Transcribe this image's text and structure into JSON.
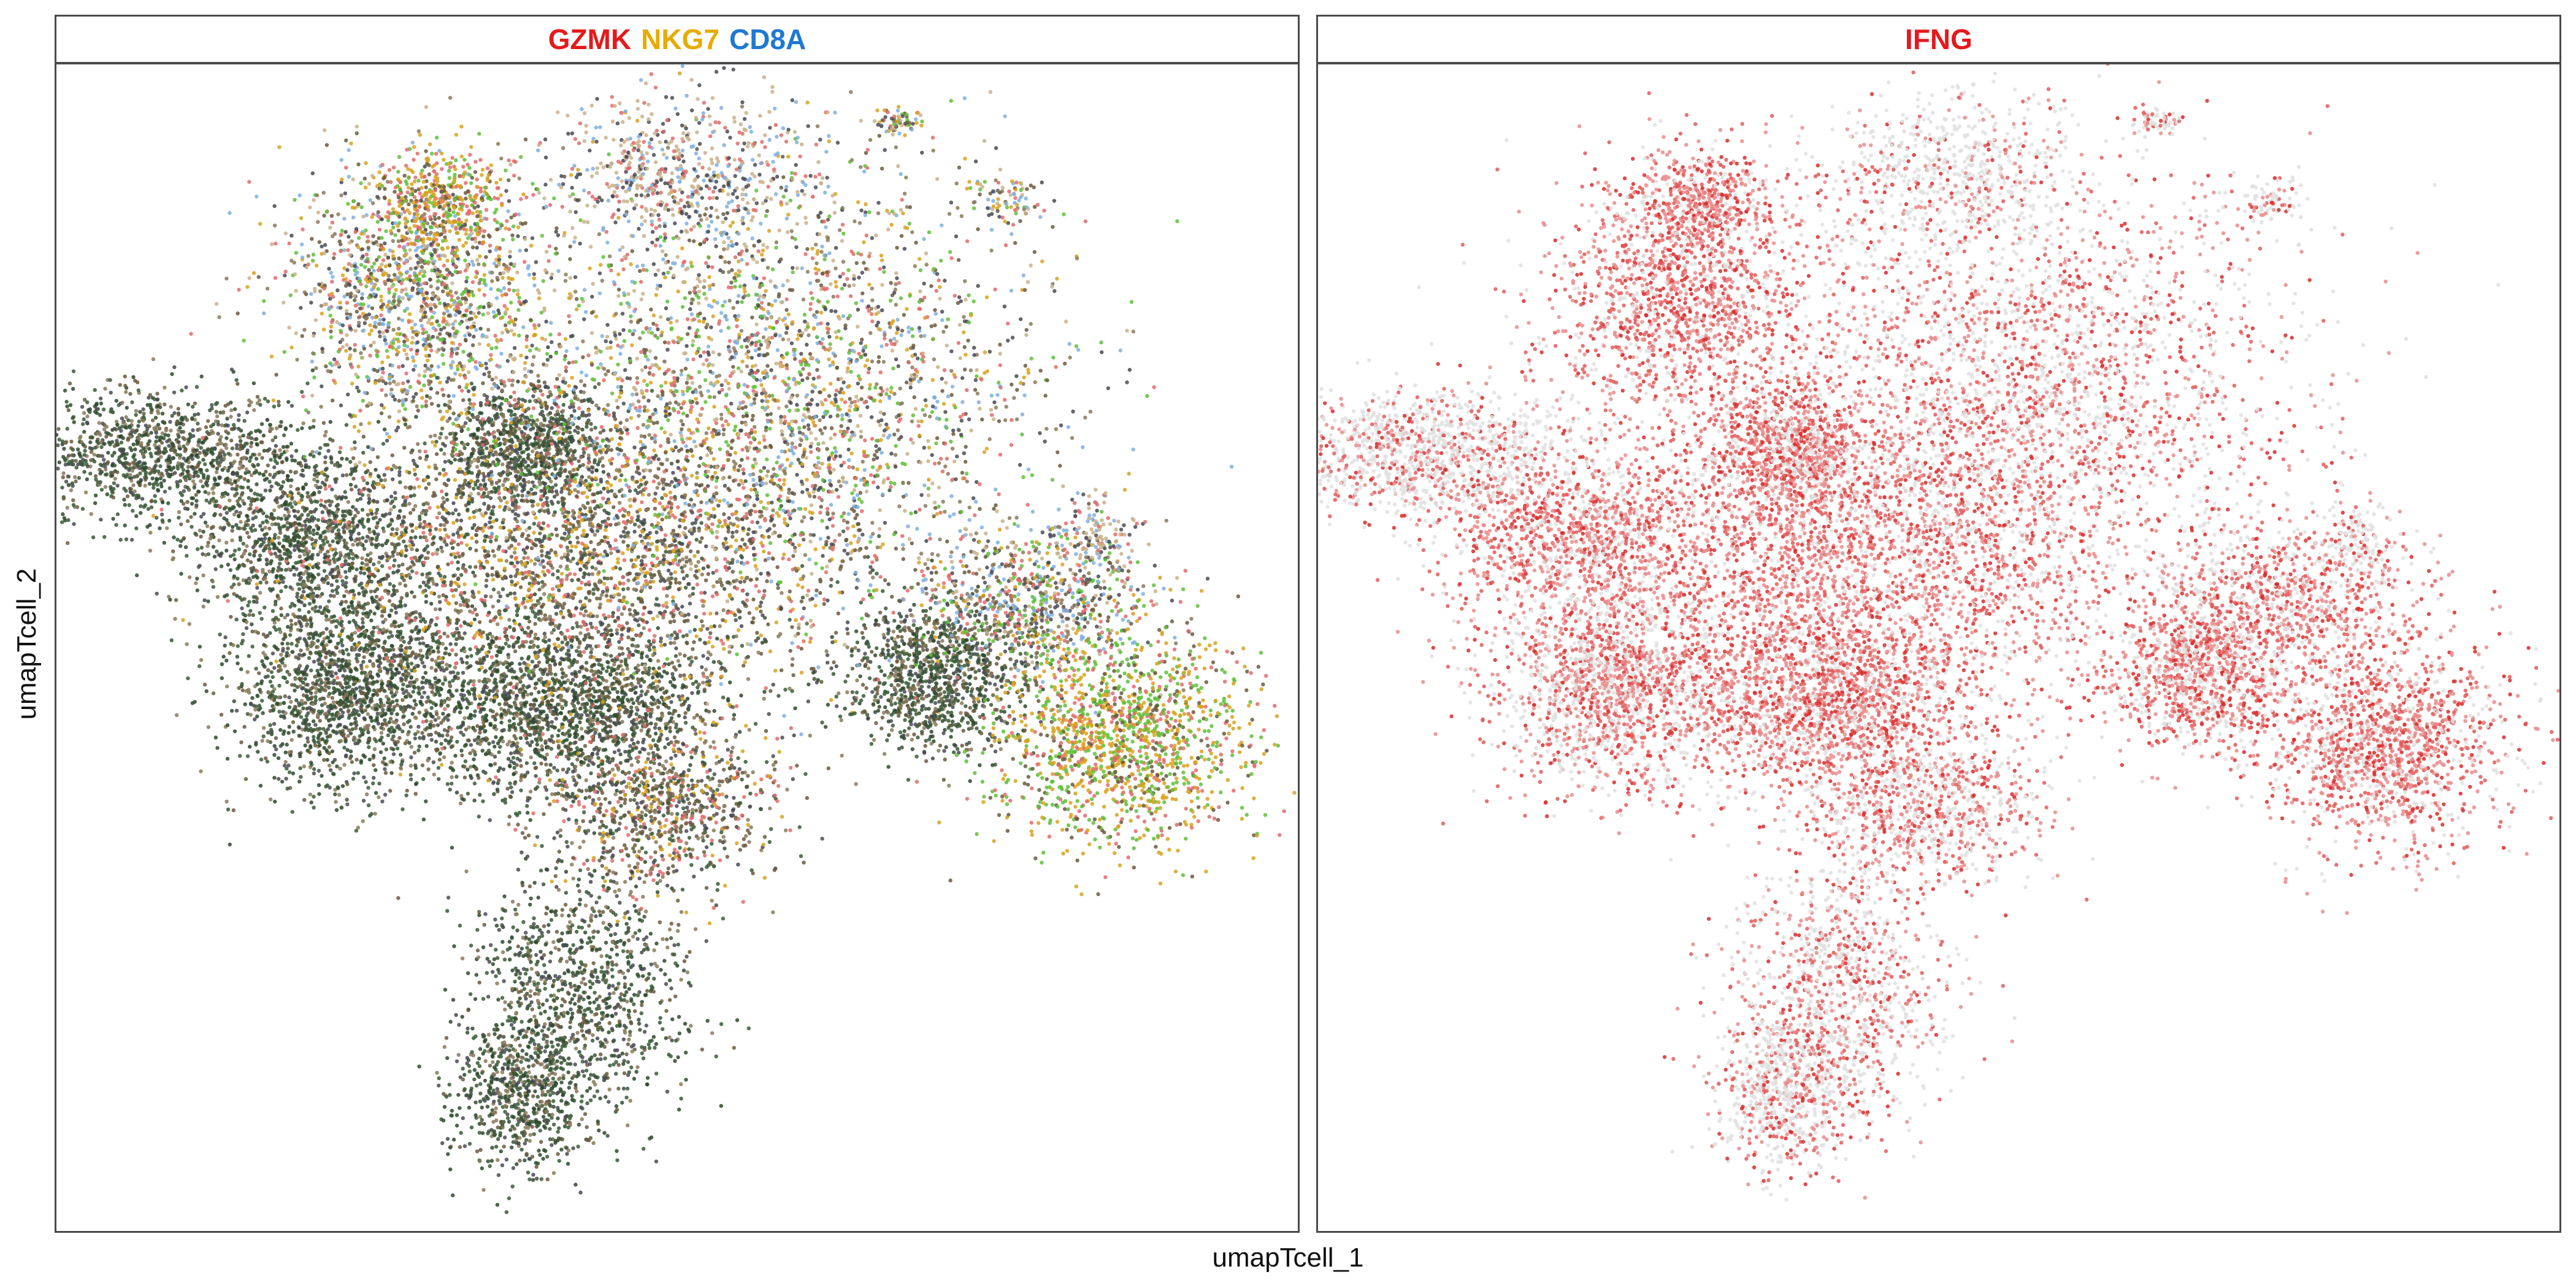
{
  "chart_data": [
    {
      "type": "scatter",
      "panel_title_parts": [
        {
          "text": "GZMK",
          "color": "#E41A1C"
        },
        {
          "text": "NKG7",
          "color": "#E6AB02"
        },
        {
          "text": "CD8A",
          "color": "#1F78D1"
        }
      ],
      "xlabel": "umapTcell_1",
      "ylabel": "umapTcell_2",
      "legend": "none",
      "grid": false,
      "point_colors": [
        "#2f4a2e",
        "#3a5a37",
        "#4a4a55",
        "#6b5a3e",
        "#e36b6b",
        "#d9a21e",
        "#5fbf3a",
        "#7fb0e0",
        "#8a7a5a",
        "#c9b28a"
      ],
      "clusters": [
        {
          "x": -8.4,
          "y": 6.5,
          "sx": 1.2,
          "sy": 0.5,
          "w": 6,
          "mix": "dark"
        },
        {
          "x": -6.2,
          "y": 5.2,
          "sx": 1.0,
          "sy": 0.6,
          "w": 5,
          "mix": "dark"
        },
        {
          "x": -5.6,
          "y": 2.9,
          "sx": 0.9,
          "sy": 0.8,
          "w": 8,
          "mix": "dark"
        },
        {
          "x": -2.4,
          "y": 2.6,
          "sx": 1.1,
          "sy": 0.7,
          "w": 8,
          "mix": "dark"
        },
        {
          "x": -3.0,
          "y": 6.6,
          "sx": 0.6,
          "sy": 0.5,
          "w": 4,
          "mix": "dark"
        },
        {
          "x": -2.2,
          "y": 4.9,
          "sx": 2.0,
          "sy": 1.2,
          "w": 12,
          "mix": "brown"
        },
        {
          "x": 0.6,
          "y": 7.4,
          "sx": 2.0,
          "sy": 1.8,
          "w": 14,
          "mix": "multi"
        },
        {
          "x": -4.6,
          "y": 8.9,
          "sx": 1.0,
          "sy": 1.0,
          "w": 7,
          "mix": "multi"
        },
        {
          "x": -4.3,
          "y": 10.4,
          "sx": 0.5,
          "sy": 0.4,
          "w": 2,
          "mix": "yellow"
        },
        {
          "x": -0.6,
          "y": 10.8,
          "sx": 1.0,
          "sy": 0.6,
          "w": 3,
          "mix": "light"
        },
        {
          "x": 3.1,
          "y": 3.1,
          "sx": 0.7,
          "sy": 0.6,
          "w": 5,
          "mix": "dark"
        },
        {
          "x": 4.6,
          "y": 4.2,
          "sx": 0.9,
          "sy": 0.6,
          "w": 4,
          "mix": "multi"
        },
        {
          "x": 5.9,
          "y": 2.0,
          "sx": 0.9,
          "sy": 0.8,
          "w": 7,
          "mix": "green"
        },
        {
          "x": -1.0,
          "y": 1.0,
          "sx": 0.9,
          "sy": 0.6,
          "w": 4,
          "mix": "brown"
        },
        {
          "x": -2.2,
          "y": -1.8,
          "sx": 0.8,
          "sy": 1.0,
          "w": 5,
          "mix": "dark"
        },
        {
          "x": -3.1,
          "y": -3.4,
          "sx": 0.5,
          "sy": 0.6,
          "w": 3,
          "mix": "dark"
        },
        {
          "x": 2.5,
          "y": 11.6,
          "sx": 0.2,
          "sy": 0.1,
          "w": 0.3,
          "mix": "multi"
        },
        {
          "x": 4.2,
          "y": 10.4,
          "sx": 0.25,
          "sy": 0.2,
          "w": 0.4,
          "mix": "multi"
        },
        {
          "x": 5.5,
          "y": 5.2,
          "sx": 0.3,
          "sy": 0.3,
          "w": 0.6,
          "mix": "light"
        }
      ]
    },
    {
      "type": "scatter",
      "panel_title_parts": [
        {
          "text": "IFNG",
          "color": "#E41A1C"
        }
      ],
      "xlabel": "umapTcell_1",
      "ylabel": "umapTcell_2",
      "legend": "none",
      "grid": false,
      "point_colors": [
        "#e0e0e0",
        "#e98c8c",
        "#e35a5a",
        "#d92b2b"
      ],
      "clusters": [
        {
          "x": -8.4,
          "y": 6.5,
          "sx": 1.2,
          "sy": 0.5,
          "w": 6,
          "expr": 0.35
        },
        {
          "x": -6.2,
          "y": 5.2,
          "sx": 1.0,
          "sy": 0.6,
          "w": 5,
          "expr": 0.75
        },
        {
          "x": -5.6,
          "y": 2.9,
          "sx": 0.9,
          "sy": 0.8,
          "w": 8,
          "expr": 0.6
        },
        {
          "x": -2.4,
          "y": 2.6,
          "sx": 1.1,
          "sy": 0.7,
          "w": 8,
          "expr": 0.7
        },
        {
          "x": -3.0,
          "y": 6.6,
          "sx": 0.6,
          "sy": 0.5,
          "w": 4,
          "expr": 0.7
        },
        {
          "x": -2.2,
          "y": 4.9,
          "sx": 2.0,
          "sy": 1.2,
          "w": 12,
          "expr": 0.8
        },
        {
          "x": 0.6,
          "y": 7.4,
          "sx": 2.0,
          "sy": 1.8,
          "w": 14,
          "expr": 0.55
        },
        {
          "x": -4.6,
          "y": 8.9,
          "sx": 1.0,
          "sy": 1.0,
          "w": 7,
          "expr": 0.8
        },
        {
          "x": -4.3,
          "y": 10.4,
          "sx": 0.5,
          "sy": 0.4,
          "w": 2,
          "expr": 0.8
        },
        {
          "x": -0.6,
          "y": 10.8,
          "sx": 1.0,
          "sy": 0.6,
          "w": 3,
          "expr": 0.25
        },
        {
          "x": 3.1,
          "y": 3.1,
          "sx": 0.7,
          "sy": 0.6,
          "w": 5,
          "expr": 0.7
        },
        {
          "x": 4.6,
          "y": 4.2,
          "sx": 0.9,
          "sy": 0.6,
          "w": 4,
          "expr": 0.7
        },
        {
          "x": 5.9,
          "y": 2.0,
          "sx": 0.9,
          "sy": 0.8,
          "w": 7,
          "expr": 0.75
        },
        {
          "x": -1.0,
          "y": 1.0,
          "sx": 0.9,
          "sy": 0.6,
          "w": 4,
          "expr": 0.6
        },
        {
          "x": -2.2,
          "y": -1.8,
          "sx": 0.8,
          "sy": 1.0,
          "w": 5,
          "expr": 0.5
        },
        {
          "x": -3.1,
          "y": -3.4,
          "sx": 0.5,
          "sy": 0.6,
          "w": 3,
          "expr": 0.45
        },
        {
          "x": 2.5,
          "y": 11.6,
          "sx": 0.2,
          "sy": 0.1,
          "w": 0.3,
          "expr": 0.6
        },
        {
          "x": 4.2,
          "y": 10.4,
          "sx": 0.25,
          "sy": 0.2,
          "w": 0.4,
          "expr": 0.3
        },
        {
          "x": 5.5,
          "y": 5.2,
          "sx": 0.3,
          "sy": 0.3,
          "w": 0.6,
          "expr": 0.3
        }
      ]
    }
  ],
  "axis_titles": {
    "x": "umapTcell_1",
    "y": "umapTcell_2"
  }
}
